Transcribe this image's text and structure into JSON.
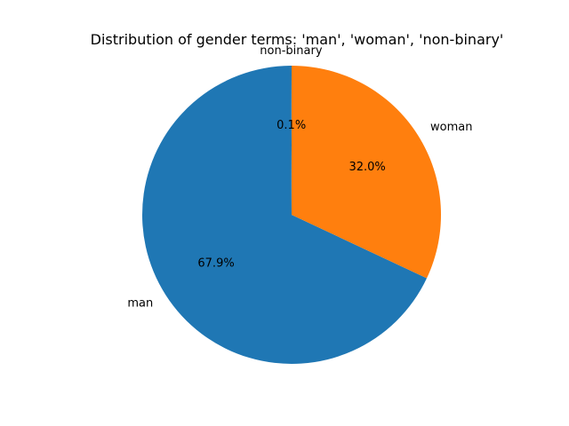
{
  "chart_data": {
    "type": "pie",
    "title": "Distribution of gender terms: 'man', 'woman', 'non-binary'",
    "start_angle_deg": 90,
    "direction": "counterclockwise",
    "slices": [
      {
        "label": "non-binary",
        "value": 0.1,
        "pct_label": "0.1%",
        "color": "#1f77b4"
      },
      {
        "label": "man",
        "value": 67.9,
        "pct_label": "67.9%",
        "color": "#1f77b4"
      },
      {
        "label": "woman",
        "value": 32.0,
        "pct_label": "32.0%",
        "color": "#ff7f0e"
      }
    ]
  }
}
